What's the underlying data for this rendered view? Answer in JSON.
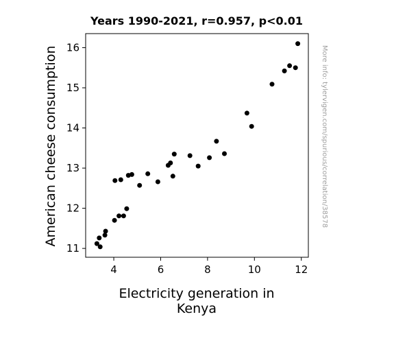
{
  "chart_data": {
    "type": "scatter",
    "title": "Years 1990-2021, r=0.957, p<0.01",
    "xlabel_lines": [
      "Electricity generation in",
      "Kenya"
    ],
    "ylabel": "American cheese consumption",
    "watermark": "More info: tylervigen.com/spurious/correlation/38578",
    "xlim": [
      2.8,
      12.3
    ],
    "ylim": [
      10.78,
      16.35
    ],
    "xticks": [
      4,
      6,
      8,
      10,
      12
    ],
    "yticks": [
      11,
      12,
      13,
      14,
      15,
      16
    ],
    "marker_color": "#000000",
    "points": [
      {
        "x": 3.28,
        "y": 11.12
      },
      {
        "x": 3.38,
        "y": 11.26
      },
      {
        "x": 3.42,
        "y": 11.04
      },
      {
        "x": 3.62,
        "y": 11.33
      },
      {
        "x": 3.65,
        "y": 11.43
      },
      {
        "x": 4.03,
        "y": 11.7
      },
      {
        "x": 4.05,
        "y": 12.69
      },
      {
        "x": 4.22,
        "y": 11.81
      },
      {
        "x": 4.3,
        "y": 12.71
      },
      {
        "x": 4.42,
        "y": 11.81
      },
      {
        "x": 4.55,
        "y": 11.99
      },
      {
        "x": 4.62,
        "y": 12.82
      },
      {
        "x": 4.77,
        "y": 12.84
      },
      {
        "x": 5.1,
        "y": 12.57
      },
      {
        "x": 5.45,
        "y": 12.86
      },
      {
        "x": 5.88,
        "y": 12.66
      },
      {
        "x": 6.32,
        "y": 13.07
      },
      {
        "x": 6.42,
        "y": 13.13
      },
      {
        "x": 6.52,
        "y": 12.8
      },
      {
        "x": 6.58,
        "y": 13.35
      },
      {
        "x": 7.25,
        "y": 13.31
      },
      {
        "x": 7.6,
        "y": 13.05
      },
      {
        "x": 8.08,
        "y": 13.26
      },
      {
        "x": 8.38,
        "y": 13.67
      },
      {
        "x": 8.72,
        "y": 13.36
      },
      {
        "x": 9.68,
        "y": 14.37
      },
      {
        "x": 9.88,
        "y": 14.04
      },
      {
        "x": 10.75,
        "y": 15.09
      },
      {
        "x": 11.28,
        "y": 15.42
      },
      {
        "x": 11.5,
        "y": 15.55
      },
      {
        "x": 11.75,
        "y": 15.5
      },
      {
        "x": 11.85,
        "y": 16.1
      }
    ]
  }
}
